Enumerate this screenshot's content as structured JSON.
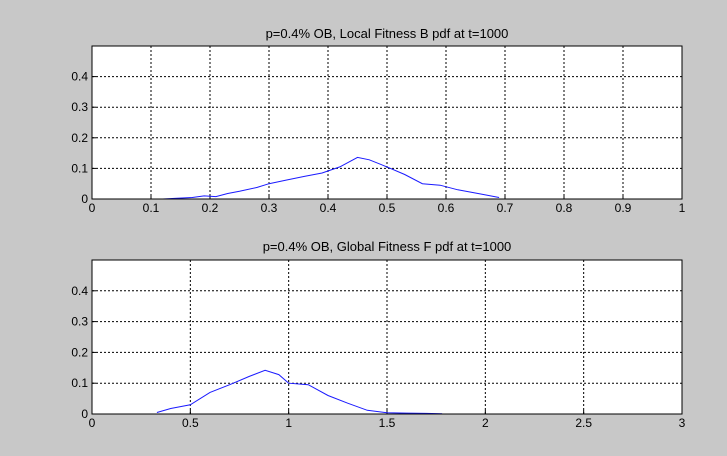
{
  "figure": {
    "background": "#c8c8c8",
    "axes_color": "#ffffff",
    "line_color": "#1a1aff"
  },
  "chart_data": [
    {
      "type": "line",
      "title": "p=0.4% OB,  Local Fitness B pdf at t=1000",
      "xlabel": "",
      "ylabel": "",
      "xlim": [
        0,
        1
      ],
      "ylim": [
        0,
        0.5
      ],
      "grid": true,
      "xticks": [
        0,
        0.1,
        0.2,
        0.3,
        0.4,
        0.5,
        0.6,
        0.7,
        0.8,
        0.9,
        1
      ],
      "xtick_labels": [
        "0",
        "0.1",
        "0.2",
        "0.3",
        "0.4",
        "0.5",
        "0.6",
        "0.7",
        "0.8",
        "0.9",
        "1"
      ],
      "yticks": [
        0,
        0.1,
        0.2,
        0.3,
        0.4
      ],
      "ytick_labels": [
        "0",
        "0.1",
        "0.2",
        "0.3",
        "0.4"
      ],
      "series": [
        {
          "x": [
            0.12,
            0.14,
            0.17,
            0.19,
            0.21,
            0.23,
            0.25,
            0.28,
            0.3,
            0.33,
            0.36,
            0.39,
            0.42,
            0.45,
            0.47,
            0.5,
            0.53,
            0.56,
            0.59,
            0.62,
            0.66,
            0.69
          ],
          "y": [
            0.0,
            0.002,
            0.005,
            0.01,
            0.008,
            0.018,
            0.025,
            0.038,
            0.05,
            0.062,
            0.074,
            0.085,
            0.105,
            0.136,
            0.128,
            0.105,
            0.08,
            0.05,
            0.045,
            0.03,
            0.016,
            0.005
          ]
        }
      ]
    },
    {
      "type": "line",
      "title": "p=0.4% OB,  Global Fitness F pdf at t=1000",
      "xlabel": "",
      "ylabel": "",
      "xlim": [
        0,
        3
      ],
      "ylim": [
        0,
        0.5
      ],
      "grid": true,
      "xticks": [
        0,
        0.5,
        1,
        1.5,
        2,
        2.5,
        3
      ],
      "xtick_labels": [
        "0",
        "0.5",
        "1",
        "1.5",
        "2",
        "2.5",
        "3"
      ],
      "yticks": [
        0,
        0.1,
        0.2,
        0.3,
        0.4
      ],
      "yticks_labels_note": "",
      "ytick_labels": [
        "0",
        "0.1",
        "0.2",
        "0.3",
        "0.4"
      ],
      "series": [
        {
          "x": [
            0.33,
            0.4,
            0.5,
            0.6,
            0.7,
            0.8,
            0.88,
            0.95,
            1.0,
            1.1,
            1.2,
            1.3,
            1.4,
            1.5,
            1.6,
            1.7,
            1.78
          ],
          "y": [
            0.005,
            0.018,
            0.03,
            0.07,
            0.095,
            0.122,
            0.142,
            0.128,
            0.1,
            0.095,
            0.06,
            0.035,
            0.012,
            0.004,
            0.003,
            0.002,
            0.001
          ]
        }
      ]
    }
  ]
}
